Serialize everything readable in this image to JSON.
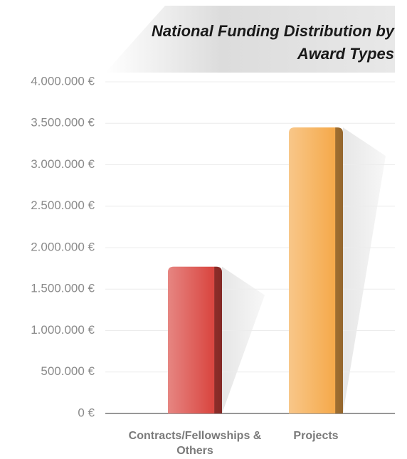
{
  "chart_data": {
    "type": "bar",
    "title": "National Funding Distribution by Award Types",
    "categories": [
      "Contracts/Fellowships & Others",
      "Projects"
    ],
    "values": [
      1770000,
      3450000
    ],
    "colors": [
      "#d9453f",
      "#f5a94a"
    ],
    "ylim": [
      0,
      4000000
    ],
    "yticks": [
      {
        "value": 0,
        "label": "0 €"
      },
      {
        "value": 500000,
        "label": "500.000 €"
      },
      {
        "value": 1000000,
        "label": "1.000.000 €"
      },
      {
        "value": 1500000,
        "label": "1.500.000 €"
      },
      {
        "value": 2000000,
        "label": "2.000.000 €"
      },
      {
        "value": 2500000,
        "label": "2.500.000 €"
      },
      {
        "value": 3000000,
        "label": "3.000.000 €"
      },
      {
        "value": 3500000,
        "label": "3.500.000 €"
      },
      {
        "value": 4000000,
        "label": "4.000.000 €"
      }
    ],
    "grid": true
  }
}
